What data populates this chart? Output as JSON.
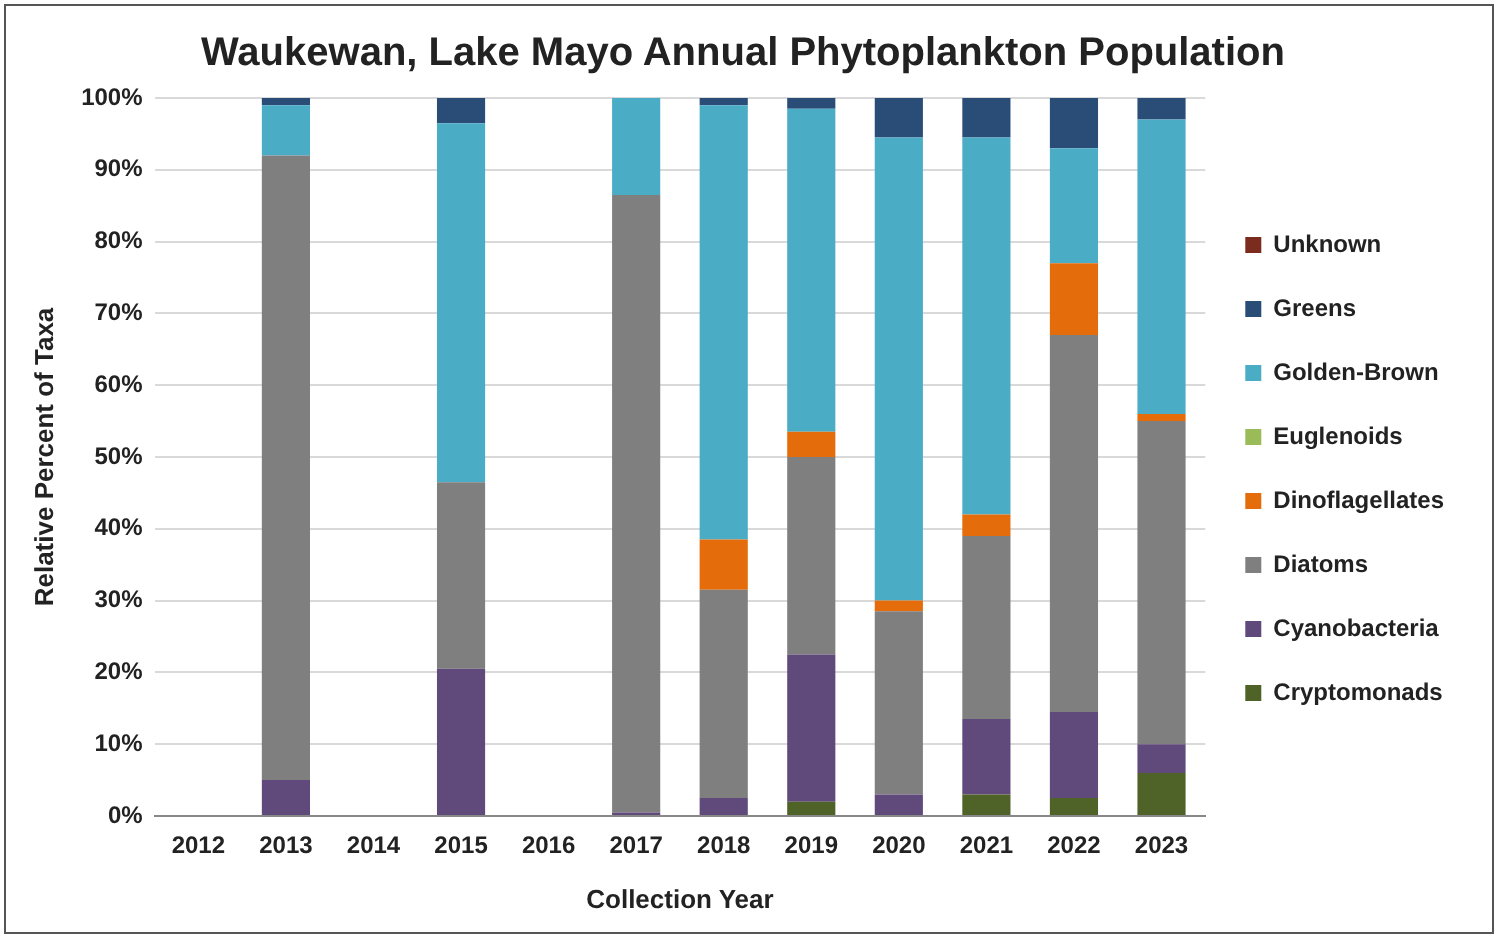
{
  "chart_data": {
    "type": "bar",
    "title": "Waukewan, Lake Mayo Annual Phytoplankton Population",
    "xlabel": "Collection Year",
    "ylabel": "Relative Percent of Taxa",
    "categories": [
      "2012",
      "2013",
      "2014",
      "2015",
      "2016",
      "2017",
      "2018",
      "2019",
      "2020",
      "2021",
      "2022",
      "2023"
    ],
    "stacked": true,
    "legend": "right",
    "grid": "y",
    "ylim": [
      0,
      100
    ],
    "yticks": [
      {
        "value": 0,
        "label": "0%"
      },
      {
        "value": 10,
        "label": "10%"
      },
      {
        "value": 20,
        "label": "20%"
      },
      {
        "value": 30,
        "label": "30%"
      },
      {
        "value": 40,
        "label": "40%"
      },
      {
        "value": 50,
        "label": "50%"
      },
      {
        "value": 60,
        "label": "60%"
      },
      {
        "value": 70,
        "label": "70%"
      },
      {
        "value": 80,
        "label": "80%"
      },
      {
        "value": 90,
        "label": "90%"
      },
      {
        "value": 100,
        "label": "100%"
      }
    ],
    "series": [
      {
        "name": "Cryptomonads",
        "color": "#4f6228",
        "values": [
          null,
          0,
          null,
          0,
          null,
          0,
          0,
          2,
          0,
          3,
          2.5,
          6
        ]
      },
      {
        "name": "Cyanobacteria",
        "color": "#604a7b",
        "values": [
          null,
          5,
          null,
          20.5,
          null,
          0.5,
          2.5,
          20.5,
          3,
          10.5,
          12,
          4
        ]
      },
      {
        "name": "Diatoms",
        "color": "#7f7f7f",
        "values": [
          null,
          87,
          null,
          26,
          null,
          86,
          29,
          27.5,
          25.5,
          25.5,
          52.5,
          45
        ]
      },
      {
        "name": "Dinoflagellates",
        "color": "#e46c0a",
        "values": [
          null,
          0,
          null,
          0,
          null,
          0,
          7,
          3.5,
          1.5,
          3,
          10,
          1
        ]
      },
      {
        "name": "Euglenoids",
        "color": "#9bbb59",
        "values": [
          null,
          0,
          null,
          0,
          null,
          0,
          0,
          0,
          0,
          0,
          0,
          0
        ]
      },
      {
        "name": "Golden-Brown",
        "color": "#4bacc6",
        "values": [
          null,
          7,
          null,
          50,
          null,
          13.5,
          60.5,
          45,
          64.5,
          52.5,
          16,
          41
        ]
      },
      {
        "name": "Greens",
        "color": "#2a4d78",
        "values": [
          null,
          1,
          null,
          3.5,
          null,
          0,
          1,
          1.5,
          5.5,
          5.5,
          7,
          3
        ]
      },
      {
        "name": "Unknown",
        "color": "#7b2c1e",
        "values": [
          null,
          0,
          null,
          0,
          null,
          0,
          0,
          0,
          0,
          0,
          0,
          0
        ]
      }
    ]
  }
}
